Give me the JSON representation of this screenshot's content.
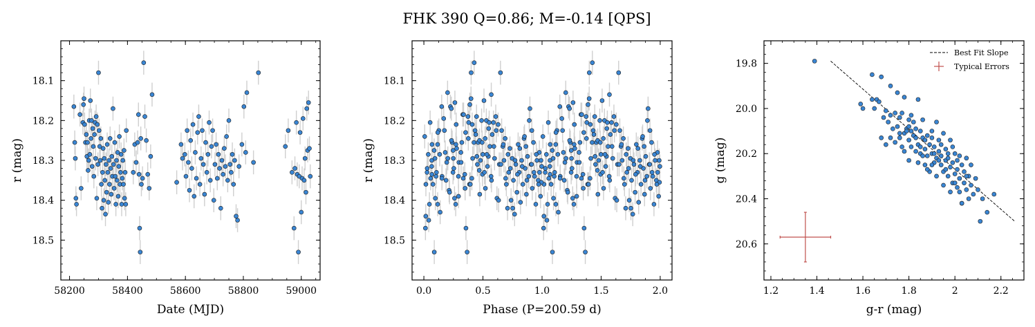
{
  "figure": {
    "title": "FHK 390  Q=0.86; M=-0.14 [QPS]"
  },
  "colors": {
    "point_fill": "#3a86d4",
    "point_edge": "#1a1a1a",
    "error_bar": "#cfcfcf",
    "typical_error": "#c0504d",
    "fit_line": "#000000"
  },
  "chart_data": [
    {
      "type": "scatter",
      "name": "light-curve",
      "xlabel": "Date (MJD)",
      "ylabel": "r (mag)",
      "xlim": [
        58170,
        59065
      ],
      "ylim": [
        18.6,
        18.0
      ],
      "y_inverted": true,
      "xticks": [
        58200,
        58400,
        58600,
        58800,
        59000
      ],
      "yticks": [
        18.1,
        18.2,
        18.3,
        18.4,
        18.5
      ],
      "error_bar_mag": 0.03,
      "points": [
        [
          58215,
          18.165
        ],
        [
          58218,
          18.255
        ],
        [
          58220,
          18.295
        ],
        [
          58222,
          18.395
        ],
        [
          58224,
          18.41
        ],
        [
          58236,
          18.185
        ],
        [
          58240,
          18.37
        ],
        [
          58246,
          18.205
        ],
        [
          58248,
          18.16
        ],
        [
          58250,
          18.145
        ],
        [
          58252,
          18.21
        ],
        [
          58255,
          18.255
        ],
        [
          58258,
          18.235
        ],
        [
          58260,
          18.29
        ],
        [
          58262,
          18.255
        ],
        [
          58264,
          18.325
        ],
        [
          58266,
          18.3
        ],
        [
          58268,
          18.2
        ],
        [
          58270,
          18.285
        ],
        [
          58272,
          18.15
        ],
        [
          58274,
          18.245
        ],
        [
          58276,
          18.2
        ],
        [
          58278,
          18.315
        ],
        [
          58280,
          18.22
        ],
        [
          58282,
          18.265
        ],
        [
          58284,
          18.34
        ],
        [
          58286,
          18.235
        ],
        [
          58288,
          18.205
        ],
        [
          58290,
          18.295
        ],
        [
          58292,
          18.19
        ],
        [
          58294,
          18.395
        ],
        [
          58296,
          18.21
        ],
        [
          58298,
          18.31
        ],
        [
          58300,
          18.08
        ],
        [
          58302,
          18.225
        ],
        [
          58304,
          18.265
        ],
        [
          58306,
          18.3
        ],
        [
          58308,
          18.245
        ],
        [
          58310,
          18.36
        ],
        [
          58312,
          18.42
        ],
        [
          58314,
          18.33
        ],
        [
          58316,
          18.27
        ],
        [
          58318,
          18.4
        ],
        [
          58320,
          18.295
        ],
        [
          58322,
          18.35
        ],
        [
          58324,
          18.435
        ],
        [
          58326,
          18.31
        ],
        [
          58328,
          18.38
        ],
        [
          58330,
          18.26
        ],
        [
          58332,
          18.33
        ],
        [
          58334,
          18.405
        ],
        [
          58336,
          18.3
        ],
        [
          58338,
          18.36
        ],
        [
          58340,
          18.245
        ],
        [
          58342,
          18.32
        ],
        [
          58344,
          18.385
        ],
        [
          58346,
          18.29
        ],
        [
          58348,
          18.34
        ],
        [
          58350,
          18.17
        ],
        [
          58352,
          18.31
        ],
        [
          58354,
          18.37
        ],
        [
          58356,
          18.255
        ],
        [
          58358,
          18.34
        ],
        [
          58360,
          18.41
        ],
        [
          58362,
          18.3
        ],
        [
          58364,
          18.35
        ],
        [
          58366,
          18.28
        ],
        [
          58368,
          18.39
        ],
        [
          58370,
          18.315
        ],
        [
          58372,
          18.24
        ],
        [
          58374,
          18.36
        ],
        [
          58376,
          18.33
        ],
        [
          58378,
          18.285
        ],
        [
          58380,
          18.41
        ],
        [
          58382,
          18.345
        ],
        [
          58384,
          18.3
        ],
        [
          58386,
          18.36
        ],
        [
          58388,
          18.275
        ],
        [
          58390,
          18.395
        ],
        [
          58392,
          18.33
        ],
        [
          58394,
          18.41
        ],
        [
          58396,
          18.225
        ],
        [
          58420,
          18.33
        ],
        [
          58425,
          18.26
        ],
        [
          58430,
          18.305
        ],
        [
          58435,
          18.255
        ],
        [
          58438,
          18.185
        ],
        [
          58440,
          18.335
        ],
        [
          58442,
          18.47
        ],
        [
          58444,
          18.53
        ],
        [
          58446,
          18.245
        ],
        [
          58448,
          18.36
        ],
        [
          58452,
          18.345
        ],
        [
          58456,
          18.055
        ],
        [
          58460,
          18.19
        ],
        [
          58465,
          18.25
        ],
        [
          58470,
          18.335
        ],
        [
          58475,
          18.37
        ],
        [
          58480,
          18.29
        ],
        [
          58485,
          18.135
        ],
        [
          58570,
          18.355
        ],
        [
          58585,
          18.26
        ],
        [
          58590,
          18.295
        ],
        [
          58598,
          18.285
        ],
        [
          58602,
          18.34
        ],
        [
          58606,
          18.225
        ],
        [
          58610,
          18.305
        ],
        [
          58614,
          18.375
        ],
        [
          58618,
          18.25
        ],
        [
          58622,
          18.32
        ],
        [
          58626,
          18.21
        ],
        [
          58630,
          18.39
        ],
        [
          58634,
          18.28
        ],
        [
          58638,
          18.345
        ],
        [
          58642,
          18.23
        ],
        [
          58646,
          18.19
        ],
        [
          58650,
          18.36
        ],
        [
          58654,
          18.295
        ],
        [
          58658,
          18.225
        ],
        [
          58662,
          18.31
        ],
        [
          58666,
          18.385
        ],
        [
          58670,
          18.255
        ],
        [
          58674,
          18.33
        ],
        [
          58678,
          18.285
        ],
        [
          58682,
          18.205
        ],
        [
          58686,
          18.35
        ],
        [
          58690,
          18.265
        ],
        [
          58694,
          18.225
        ],
        [
          58698,
          18.4
        ],
        [
          58702,
          18.31
        ],
        [
          58706,
          18.26
        ],
        [
          58710,
          18.345
        ],
        [
          58714,
          18.285
        ],
        [
          58718,
          18.32
        ],
        [
          58722,
          18.42
        ],
        [
          58726,
          18.3
        ],
        [
          58730,
          18.335
        ],
        [
          58734,
          18.27
        ],
        [
          58738,
          18.315
        ],
        [
          58742,
          18.24
        ],
        [
          58746,
          18.35
        ],
        [
          58750,
          18.2
        ],
        [
          58754,
          18.31
        ],
        [
          58758,
          18.33
        ],
        [
          58762,
          18.285
        ],
        [
          58766,
          18.36
        ],
        [
          58770,
          18.3
        ],
        [
          58775,
          18.44
        ],
        [
          58780,
          18.45
        ],
        [
          58785,
          18.315
        ],
        [
          58795,
          18.26
        ],
        [
          58802,
          18.165
        ],
        [
          58808,
          18.28
        ],
        [
          58812,
          18.13
        ],
        [
          58835,
          18.305
        ],
        [
          58852,
          18.08
        ],
        [
          58945,
          18.265
        ],
        [
          58955,
          18.225
        ],
        [
          58968,
          18.33
        ],
        [
          58975,
          18.47
        ],
        [
          58978,
          18.32
        ],
        [
          58983,
          18.205
        ],
        [
          58986,
          18.335
        ],
        [
          58990,
          18.53
        ],
        [
          58993,
          18.34
        ],
        [
          58996,
          18.23
        ],
        [
          59000,
          18.43
        ],
        [
          59003,
          18.345
        ],
        [
          59006,
          18.195
        ],
        [
          59010,
          18.35
        ],
        [
          59013,
          18.295
        ],
        [
          59016,
          18.38
        ],
        [
          59019,
          18.17
        ],
        [
          59022,
          18.275
        ],
        [
          59025,
          18.155
        ],
        [
          59028,
          18.27
        ],
        [
          59031,
          18.34
        ]
      ]
    },
    {
      "type": "scatter",
      "name": "phased-curve",
      "xlabel": "Phase (P=200.59 d)",
      "ylabel": "r (mag)",
      "xlim": [
        -0.1,
        2.1
      ],
      "ylim": [
        18.6,
        18.0
      ],
      "y_inverted": true,
      "xticks": [
        0.0,
        0.5,
        1.0,
        1.5,
        2.0
      ],
      "xtick_labels": [
        "0.0",
        "0.5",
        "1.0",
        "1.5",
        "2.0"
      ],
      "yticks": [
        18.1,
        18.2,
        18.3,
        18.4,
        18.5
      ],
      "period_days": 200.59,
      "x_zero": 58170,
      "phase_offset": 0.0,
      "note_points": "points derived from light-curve points folded on period, plotted for phase and phase+1"
    },
    {
      "type": "scatter",
      "name": "color-magnitude",
      "xlabel": "g-r (mag)",
      "ylabel": "g (mag)",
      "xlim": [
        1.17,
        2.3
      ],
      "ylim": [
        20.76,
        19.7
      ],
      "y_inverted": true,
      "xticks": [
        1.2,
        1.4,
        1.6,
        1.8,
        2.0,
        2.2
      ],
      "yticks": [
        19.8,
        20.0,
        20.2,
        20.4,
        20.6
      ],
      "legend": {
        "position": "top-right",
        "entries": [
          {
            "label": "Best Fit Slope",
            "style": "dashed-line"
          },
          {
            "label": "Typical Errors",
            "style": "errorbar"
          }
        ]
      },
      "fit_line": [
        [
          1.46,
          19.79
        ],
        [
          2.26,
          20.5
        ]
      ],
      "typical_error": {
        "x": 1.35,
        "y": 20.57,
        "xerr": 0.11,
        "yerr": 0.11
      },
      "points": [
        [
          1.39,
          19.79
        ],
        [
          1.59,
          19.98
        ],
        [
          1.64,
          19.85
        ],
        [
          1.64,
          19.96
        ],
        [
          1.65,
          20.0
        ],
        [
          1.66,
          19.96
        ],
        [
          1.67,
          19.97
        ],
        [
          1.68,
          19.86
        ],
        [
          1.69,
          20.04
        ],
        [
          1.7,
          20.01
        ],
        [
          1.71,
          20.06
        ],
        [
          1.72,
          19.9
        ],
        [
          1.72,
          20.03
        ],
        [
          1.73,
          20.09
        ],
        [
          1.74,
          20.02
        ],
        [
          1.75,
          19.93
        ],
        [
          1.75,
          20.08
        ],
        [
          1.76,
          20.11
        ],
        [
          1.76,
          20.04
        ],
        [
          1.77,
          20.17
        ],
        [
          1.77,
          20.02
        ],
        [
          1.78,
          20.11
        ],
        [
          1.78,
          20.19
        ],
        [
          1.79,
          20.09
        ],
        [
          1.8,
          20.05
        ],
        [
          1.8,
          20.14
        ],
        [
          1.8,
          20.23
        ],
        [
          1.81,
          20.1
        ],
        [
          1.81,
          20.17
        ],
        [
          1.82,
          20.06
        ],
        [
          1.82,
          20.12
        ],
        [
          1.83,
          20.19
        ],
        [
          1.83,
          20.09
        ],
        [
          1.84,
          20.16
        ],
        [
          1.84,
          20.24
        ],
        [
          1.85,
          20.1
        ],
        [
          1.85,
          20.2
        ],
        [
          1.86,
          20.13
        ],
        [
          1.86,
          20.05
        ],
        [
          1.87,
          20.18
        ],
        [
          1.87,
          20.25
        ],
        [
          1.88,
          20.12
        ],
        [
          1.88,
          20.21
        ],
        [
          1.89,
          20.16
        ],
        [
          1.89,
          20.28
        ],
        [
          1.9,
          20.2
        ],
        [
          1.9,
          20.1
        ],
        [
          1.91,
          20.24
        ],
        [
          1.91,
          20.17
        ],
        [
          1.92,
          20.22
        ],
        [
          1.92,
          20.3
        ],
        [
          1.93,
          20.14
        ],
        [
          1.93,
          20.19
        ],
        [
          1.94,
          20.25
        ],
        [
          1.94,
          20.21
        ],
        [
          1.95,
          20.11
        ],
        [
          1.95,
          20.28
        ],
        [
          1.96,
          20.18
        ],
        [
          1.96,
          20.23
        ],
        [
          1.97,
          20.3
        ],
        [
          1.97,
          20.2
        ],
        [
          1.98,
          20.26
        ],
        [
          1.98,
          20.14
        ],
        [
          1.99,
          20.33
        ],
        [
          1.99,
          20.24
        ],
        [
          2.0,
          20.2
        ],
        [
          2.0,
          20.29
        ],
        [
          2.01,
          20.35
        ],
        [
          2.01,
          20.27
        ],
        [
          2.02,
          20.21
        ],
        [
          2.02,
          20.31
        ],
        [
          2.03,
          20.25
        ],
        [
          2.03,
          20.42
        ],
        [
          2.04,
          20.33
        ],
        [
          2.04,
          20.28
        ],
        [
          2.05,
          20.36
        ],
        [
          2.05,
          20.22
        ],
        [
          2.06,
          20.3
        ],
        [
          2.07,
          20.34
        ],
        [
          2.07,
          20.25
        ],
        [
          2.08,
          20.38
        ],
        [
          2.09,
          20.31
        ],
        [
          2.1,
          20.36
        ],
        [
          2.11,
          20.5
        ],
        [
          2.12,
          20.4
        ],
        [
          2.14,
          20.46
        ],
        [
          2.17,
          20.38
        ],
        [
          1.6,
          20.0
        ],
        [
          1.68,
          20.13
        ],
        [
          1.7,
          20.16
        ],
        [
          1.72,
          20.13
        ],
        [
          1.74,
          20.15
        ],
        [
          1.78,
          19.95
        ],
        [
          1.81,
          20.03
        ],
        [
          1.84,
          19.96
        ],
        [
          1.86,
          20.21
        ],
        [
          1.88,
          20.27
        ],
        [
          1.9,
          20.13
        ],
        [
          1.92,
          20.06
        ],
        [
          1.95,
          20.34
        ],
        [
          1.98,
          20.37
        ],
        [
          2.0,
          20.33
        ],
        [
          2.03,
          20.42
        ],
        [
          2.06,
          20.4
        ],
        [
          1.8,
          20.08
        ],
        [
          1.83,
          20.13
        ],
        [
          1.87,
          20.14
        ],
        [
          1.91,
          20.2
        ],
        [
          1.94,
          20.16
        ],
        [
          1.96,
          20.27
        ],
        [
          1.99,
          20.17
        ],
        [
          2.02,
          20.37
        ],
        [
          2.05,
          20.3
        ],
        [
          1.76,
          20.13
        ],
        [
          1.79,
          20.1
        ],
        [
          1.85,
          20.17
        ],
        [
          1.9,
          20.25
        ],
        [
          1.93,
          20.23
        ],
        [
          1.97,
          20.22
        ],
        [
          2.01,
          20.23
        ]
      ]
    }
  ]
}
